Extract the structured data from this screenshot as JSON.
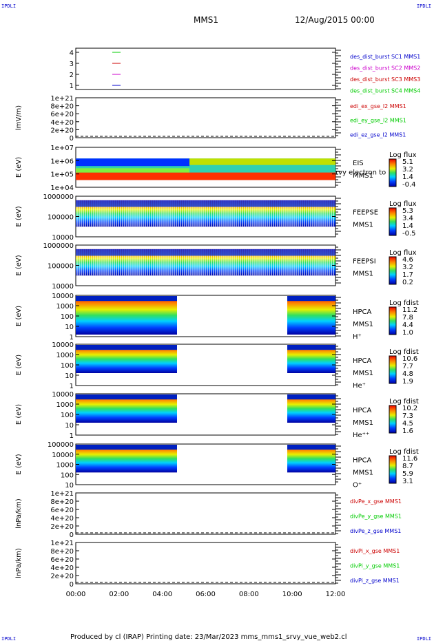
{
  "corner_label": "IPDLI",
  "header": {
    "spacecraft": "MMS1",
    "date": "12/Aug/2015 00:00"
  },
  "footer": {
    "text": "Produced by cl (IRAP)   Printing date: 23/Mar/2023   mms_mms1_srvy_vue_web2.cl"
  },
  "colors": {
    "red": "#cc0000",
    "green": "#00cc00",
    "blue": "#0000cc",
    "magenta": "#cc00cc"
  },
  "chart_data": [
    {
      "type": "line",
      "ylabel": "",
      "yticks": [
        "4",
        "3",
        "2",
        "1"
      ],
      "legend": [
        {
          "label": "des_dist_burst SC1 MMS1",
          "color": "#0000cc"
        },
        {
          "label": "des_dist_burst SC2 MMS2",
          "color": "#cc00cc"
        },
        {
          "label": "des_dist_burst SC3 MMS3",
          "color": "#cc0000"
        },
        {
          "label": "des_dist_burst SC4 MMS4",
          "color": "#00cc00"
        }
      ]
    },
    {
      "type": "line",
      "ylabel": "lmV/m)",
      "yticks": [
        "1e+21",
        "8e+20",
        "6e+20",
        "4e+20",
        "2e+20",
        "0"
      ],
      "legend": [
        {
          "label": "edi_ex_gse_l2 MMS1",
          "color": "#cc0000"
        },
        {
          "label": "edi_ey_gse_l2 MMS1",
          "color": "#00cc00"
        },
        {
          "label": "edi_ez_gse_l2 MMS1",
          "color": "#0000cc"
        }
      ]
    },
    {
      "type": "heatmap",
      "ylabel": "E (eV)",
      "yticks": [
        "1e+07",
        "1e+06",
        "1e+05",
        "1e+04"
      ],
      "label_lines": [
        "EIS",
        "MMS1"
      ],
      "overlay_text": "rvy electron to",
      "scale_title": "Log flux",
      "scale": [
        "5.1",
        "3.2",
        "1.4",
        "-0.4"
      ]
    },
    {
      "type": "heatmap",
      "ylabel": "E (eV)",
      "yticks": [
        "1000000",
        "100000",
        "10000"
      ],
      "label_lines": [
        "FEEPSE",
        "MMS1"
      ],
      "scale_title": "Log flux",
      "scale": [
        "5.3",
        "3.4",
        "1.4",
        "-0.5"
      ]
    },
    {
      "type": "heatmap",
      "ylabel": "E (eV)",
      "yticks": [
        "1000000",
        "100000",
        "10000"
      ],
      "label_lines": [
        "FEEPSI",
        "MMS1"
      ],
      "scale_title": "Log flux",
      "scale": [
        "4.6",
        "3.2",
        "1.7",
        "0.2"
      ]
    },
    {
      "type": "heatmap",
      "ylabel": "E (eV)",
      "yticks": [
        "10000",
        "1000",
        "100",
        "10",
        "1"
      ],
      "label_lines": [
        "HPCA",
        "MMS1",
        "H⁺"
      ],
      "scale_title": "Log fdist",
      "scale": [
        "11.2",
        "7.8",
        "4.4",
        "1.0"
      ]
    },
    {
      "type": "heatmap",
      "ylabel": "E (eV)",
      "yticks": [
        "10000",
        "1000",
        "100",
        "10",
        "1"
      ],
      "label_lines": [
        "HPCA",
        "MMS1",
        "He⁺"
      ],
      "scale_title": "Log fdist",
      "scale": [
        "10.6",
        "7.7",
        "4.8",
        "1.9"
      ]
    },
    {
      "type": "heatmap",
      "ylabel": "E (eV)",
      "yticks": [
        "10000",
        "1000",
        "100",
        "10",
        "1"
      ],
      "label_lines": [
        "HPCA",
        "MMS1",
        "He⁺⁺"
      ],
      "scale_title": "Log fdist",
      "scale": [
        "10.2",
        "7.3",
        "4.5",
        "1.6"
      ]
    },
    {
      "type": "heatmap",
      "ylabel": "E (eV)",
      "yticks": [
        "100000",
        "10000",
        "1000",
        "100",
        "10"
      ],
      "label_lines": [
        "HPCA",
        "MMS1",
        "O⁺"
      ],
      "scale_title": "Log fdist",
      "scale": [
        "11.6",
        "8.7",
        "5.9",
        "3.1"
      ]
    },
    {
      "type": "line",
      "ylabel": "lnPa/km)",
      "yticks": [
        "1e+21",
        "8e+20",
        "6e+20",
        "4e+20",
        "2e+20",
        "0"
      ],
      "legend": [
        {
          "label": "divPe_x_gse MMS1",
          "color": "#cc0000"
        },
        {
          "label": "divPe_y_gse MMS1",
          "color": "#00cc00"
        },
        {
          "label": "divPe_z_gse MMS1",
          "color": "#0000cc"
        }
      ]
    },
    {
      "type": "line",
      "ylabel": "lnPa/km)",
      "yticks": [
        "1e+21",
        "8e+20",
        "6e+20",
        "4e+20",
        "2e+20",
        "0"
      ],
      "legend": [
        {
          "label": "divPi_x_gse MMS1",
          "color": "#cc0000"
        },
        {
          "label": "divPi_y_gse MMS1",
          "color": "#00cc00"
        },
        {
          "label": "divPi_z_gse MMS1",
          "color": "#0000cc"
        }
      ]
    }
  ],
  "x_axis": {
    "ticks": [
      "00:00",
      "02:00",
      "04:00",
      "06:00",
      "08:00",
      "10:00",
      "12:00"
    ]
  }
}
